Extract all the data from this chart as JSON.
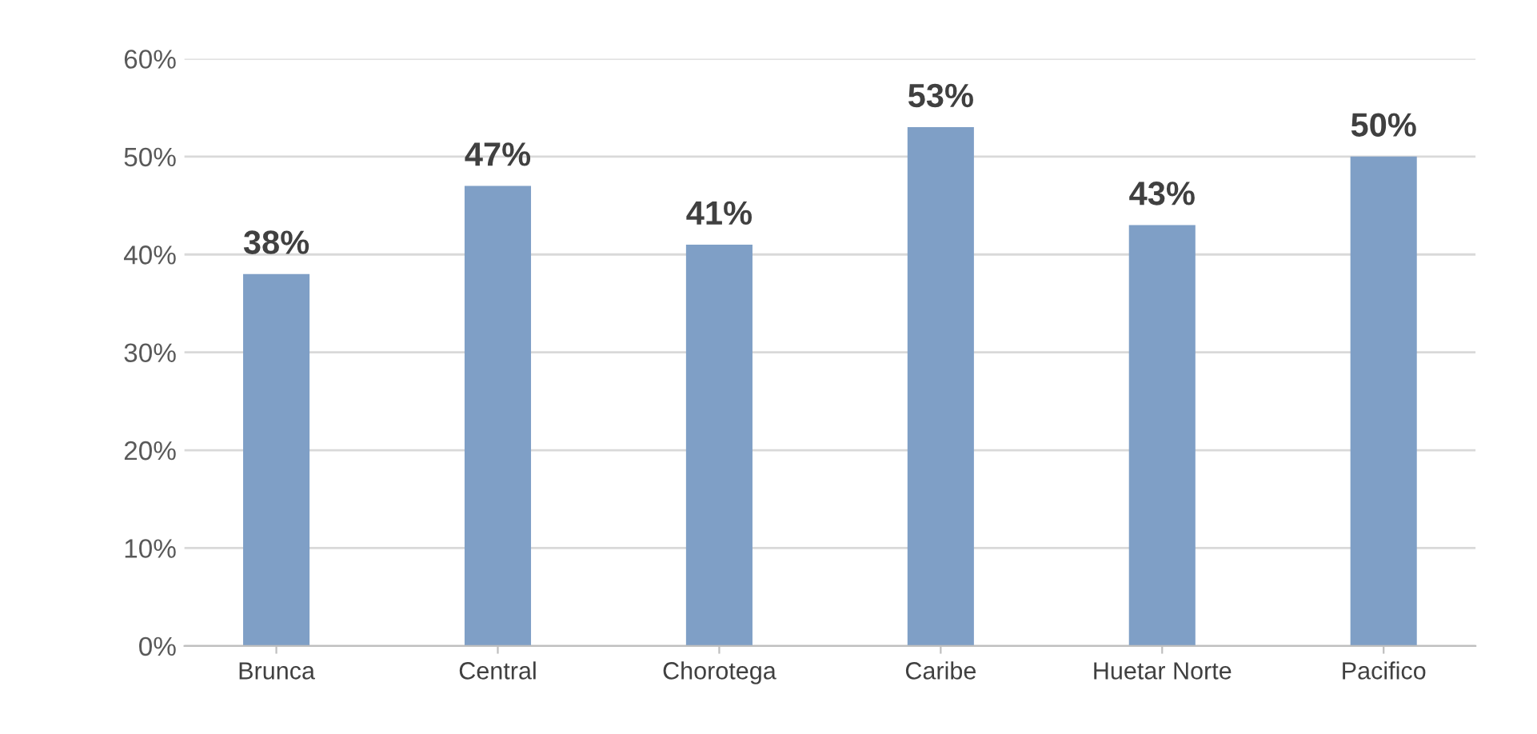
{
  "chart_data": {
    "type": "bar",
    "categories": [
      "Brunca",
      "Central",
      "Chorotega",
      "Caribe",
      "Huetar Norte",
      "Pacifico"
    ],
    "values": [
      38,
      47,
      41,
      53,
      43,
      50
    ],
    "value_labels": [
      "38%",
      "47%",
      "41%",
      "53%",
      "43%",
      "50%"
    ],
    "color": "#7f9fc6",
    "ylim": [
      0,
      60
    ],
    "yticks": [
      {
        "value": 0,
        "label": "0%"
      },
      {
        "value": 10,
        "label": "10%"
      },
      {
        "value": 20,
        "label": "20%"
      },
      {
        "value": 30,
        "label": "30%"
      },
      {
        "value": 40,
        "label": "40%"
      },
      {
        "value": 50,
        "label": "50%"
      },
      {
        "value": 60,
        "label": "60%"
      }
    ],
    "grid": "y"
  }
}
